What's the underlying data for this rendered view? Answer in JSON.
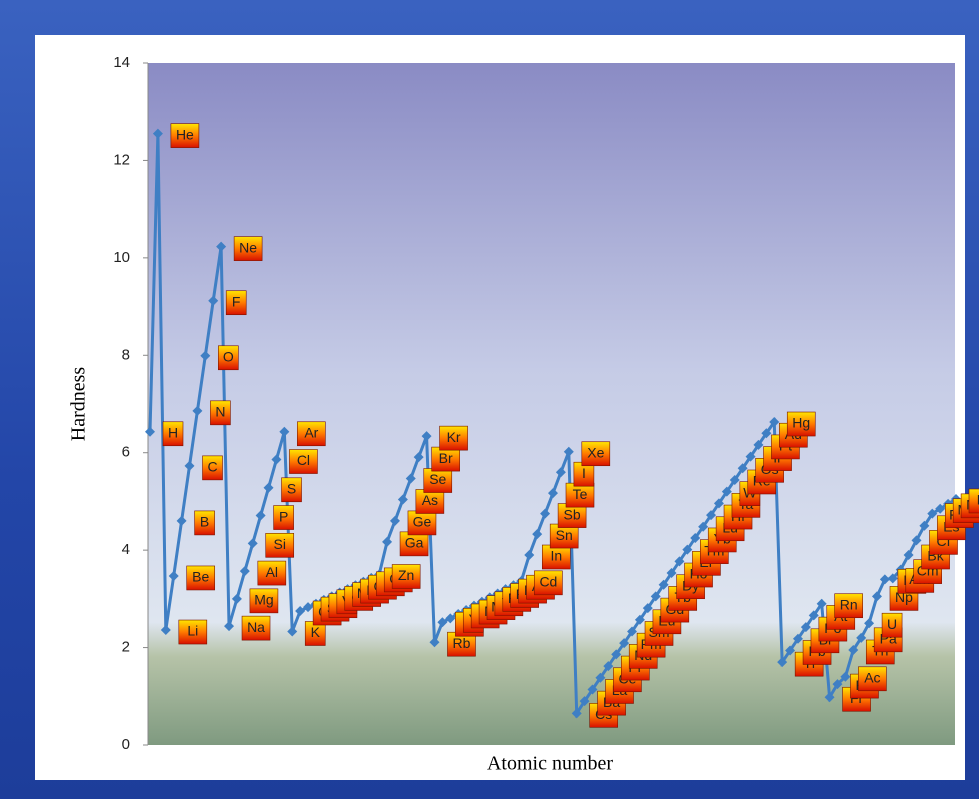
{
  "chart_data": {
    "type": "line",
    "x_label": "Atomic number",
    "y_label": "Hardness",
    "categories": [
      "H",
      "He",
      "Li",
      "Be",
      "B",
      "C",
      "N",
      "O",
      "F",
      "Ne",
      "Na",
      "Mg",
      "Al",
      "Si",
      "P",
      "S",
      "Cl",
      "Ar",
      "K",
      "Ca",
      "Sc",
      "Ti",
      "V",
      "Cr",
      "Mn",
      "Fe",
      "Co",
      "Ni",
      "Cu",
      "Zn",
      "Ga",
      "Ge",
      "As",
      "Se",
      "Br",
      "Kr",
      "Rb",
      "Sr",
      "Y",
      "Zr",
      "Nb",
      "Mo",
      "Tc",
      "Ru",
      "Rh",
      "Pd",
      "Ag",
      "Cd",
      "In",
      "Sn",
      "Sb",
      "Te",
      "I",
      "Xe",
      "Cs",
      "Ba",
      "La",
      "Ce",
      "Pr",
      "Nd",
      "Pm",
      "Sm",
      "Eu",
      "Gd",
      "Tb",
      "Dy",
      "Ho",
      "Er",
      "Tm",
      "Yb",
      "Lu",
      "Hf",
      "Ta",
      "W",
      "Re",
      "Os",
      "Ir",
      "Pt",
      "Au",
      "Hg",
      "Tl",
      "Pb",
      "Bi",
      "Po",
      "At",
      "Rn",
      "Fr",
      "Ra",
      "Ac",
      "Th",
      "Pa",
      "U",
      "Np",
      "Pu",
      "Am",
      "Cm",
      "Bk",
      "Cf",
      "Es",
      "Fm",
      "Md",
      "No",
      "Lr"
    ],
    "values": [
      6.43,
      12.55,
      2.36,
      3.47,
      4.6,
      5.73,
      6.86,
      7.99,
      9.12,
      10.23,
      2.44,
      3.0,
      3.57,
      4.14,
      4.71,
      5.28,
      5.86,
      6.43,
      2.33,
      2.75,
      2.83,
      2.9,
      2.98,
      3.05,
      3.13,
      3.2,
      3.28,
      3.35,
      3.43,
      3.5,
      4.17,
      4.6,
      5.04,
      5.47,
      5.91,
      6.34,
      2.11,
      2.52,
      2.6,
      2.69,
      2.77,
      2.86,
      2.94,
      3.03,
      3.11,
      3.2,
      3.28,
      3.37,
      3.9,
      4.33,
      4.75,
      5.17,
      5.6,
      6.02,
      0.65,
      0.9,
      1.14,
      1.38,
      1.62,
      1.86,
      2.09,
      2.33,
      2.57,
      2.81,
      3.05,
      3.29,
      3.53,
      3.77,
      4.01,
      4.25,
      4.48,
      4.72,
      4.96,
      5.2,
      5.44,
      5.68,
      5.92,
      6.16,
      6.4,
      6.63,
      1.7,
      1.94,
      2.18,
      2.42,
      2.66,
      2.9,
      0.98,
      1.25,
      1.4,
      1.95,
      2.2,
      2.5,
      3.05,
      3.4,
      3.42,
      3.6,
      3.9,
      4.2,
      4.5,
      4.75,
      4.85,
      4.95,
      5.05
    ],
    "color": "#3f7fc4",
    "ylim": [
      0,
      14
    ],
    "yticks": [
      0,
      2,
      4,
      6,
      8,
      10,
      12,
      14
    ]
  }
}
